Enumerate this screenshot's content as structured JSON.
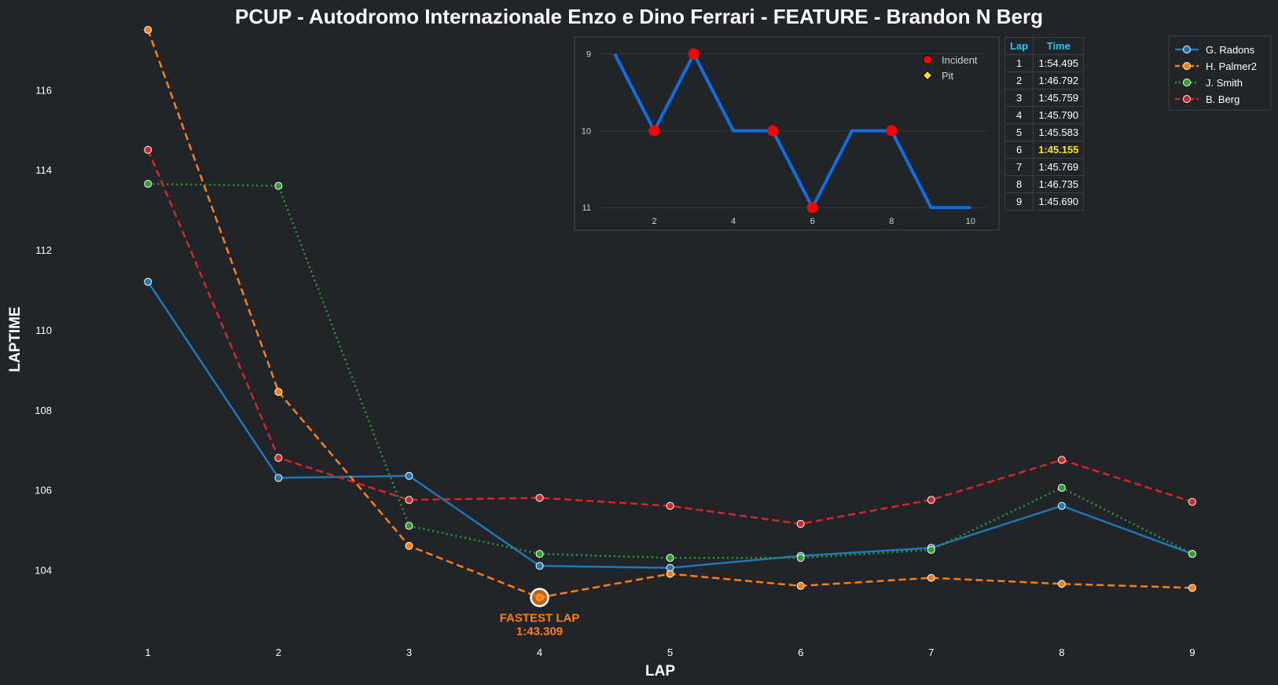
{
  "chart_data": [
    {
      "type": "line",
      "title": "PCUP - Autodromo Internazionale Enzo e Dino Ferrari - FEATURE - Brandon N Berg",
      "xlabel": "LAP",
      "ylabel": "LAPTIME",
      "x": [
        1,
        2,
        3,
        4,
        5,
        6,
        7,
        8,
        9
      ],
      "xlim": [
        0.3,
        9.5
      ],
      "ylim": [
        102.3,
        117.5
      ],
      "yticks": [
        104,
        106,
        108,
        110,
        112,
        114,
        116
      ],
      "grid": false,
      "legend_position": "top-right",
      "series": [
        {
          "name": "G. Radons",
          "color": "#1f77b4",
          "style": "solid",
          "values": [
            111.2,
            106.3,
            106.35,
            104.1,
            104.05,
            104.35,
            104.55,
            105.6,
            104.4
          ]
        },
        {
          "name": "H. Palmer2",
          "color": "#ff7f0e",
          "style": "dashed",
          "values": [
            117.5,
            108.45,
            104.6,
            103.309,
            103.9,
            103.6,
            103.8,
            103.65,
            103.55
          ]
        },
        {
          "name": "J. Smith",
          "color": "#2ca02c",
          "style": "dotted",
          "values": [
            113.65,
            113.6,
            105.1,
            104.4,
            104.3,
            104.3,
            104.5,
            106.05,
            104.4
          ]
        },
        {
          "name": "B. Berg",
          "color": "#d62728",
          "style": "dashed",
          "values": [
            114.5,
            106.8,
            105.75,
            105.8,
            105.6,
            105.15,
            105.75,
            106.75,
            105.7
          ]
        }
      ],
      "annotation": {
        "label": "FASTEST LAP",
        "time": "1:43.309",
        "x": 4,
        "y": 103.309,
        "series": "H. Palmer2",
        "color": "#ff7f0e"
      }
    },
    {
      "type": "line",
      "x": [
        1,
        2,
        3,
        4,
        5,
        6,
        7,
        8,
        9,
        10
      ],
      "values": [
        9,
        10,
        9,
        10,
        10,
        11,
        10,
        10,
        11,
        11
      ],
      "xticks": [
        2,
        4,
        6,
        8,
        10
      ],
      "yticks": [
        9,
        10,
        11
      ],
      "y_inverted": true,
      "xlim": [
        0.6,
        10.4
      ],
      "ylim": [
        8.85,
        11.1
      ],
      "color": "#0f6ee6",
      "incidents": [
        2,
        3,
        5,
        6,
        8
      ],
      "legend": [
        {
          "label": "Incident",
          "marker": "circle",
          "color": "#ff0000"
        },
        {
          "label": "Pit",
          "marker": "diamond",
          "color": "#ffe600"
        }
      ],
      "legend_position": "top-right"
    }
  ],
  "lap_table": {
    "headers": [
      "Lap",
      "Time"
    ],
    "rows": [
      {
        "lap": "1",
        "time": "1:54.495"
      },
      {
        "lap": "2",
        "time": "1:46.792"
      },
      {
        "lap": "3",
        "time": "1:45.759"
      },
      {
        "lap": "4",
        "time": "1:45.790"
      },
      {
        "lap": "5",
        "time": "1:45.583"
      },
      {
        "lap": "6",
        "time": "1:45.155",
        "best": true
      },
      {
        "lap": "7",
        "time": "1:45.769"
      },
      {
        "lap": "8",
        "time": "1:46.735"
      },
      {
        "lap": "9",
        "time": "1:45.690"
      }
    ],
    "best_color": "#ffe600",
    "header_color": "#2ec3f0"
  },
  "colors": {
    "background": "#212428",
    "text": "#ffffff",
    "muted_text": "#d0d0d0",
    "frame": "#3b3f45"
  }
}
